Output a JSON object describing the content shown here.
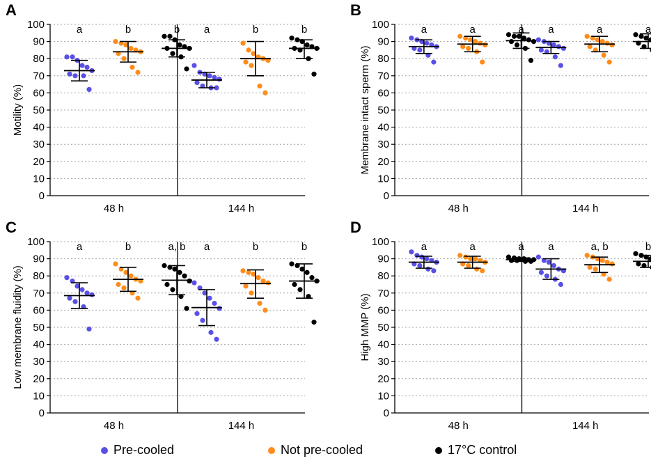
{
  "colors": {
    "pre_cooled": "#5a50e6",
    "not_pre_cooled": "#ff8c1a",
    "control": "#000000"
  },
  "legend": [
    {
      "key": "pre_cooled",
      "label": "Pre-cooled"
    },
    {
      "key": "not_pre_cooled",
      "label": "Not pre-cooled"
    },
    {
      "key": "control",
      "label": "17°C control"
    }
  ],
  "chart_data": [
    {
      "type": "scatter",
      "panel": "A",
      "ylabel": "Motility (%)",
      "ylim": [
        0,
        100
      ],
      "yticks": [
        0,
        10,
        20,
        30,
        40,
        50,
        60,
        70,
        80,
        90,
        100
      ],
      "grid": "dotted horizontal",
      "categories": [
        "48 h",
        "144 h"
      ],
      "groups": [
        {
          "series": "pre_cooled",
          "category": "48 h",
          "mean": 73,
          "sd_low": 67,
          "sd_high": 79,
          "points": [
            81,
            81,
            79,
            76,
            75,
            73,
            71,
            70,
            70,
            62
          ],
          "sig": "a"
        },
        {
          "series": "not_pre_cooled",
          "category": "48 h",
          "mean": 84,
          "sd_low": 78,
          "sd_high": 90,
          "points": [
            90,
            89,
            88,
            86,
            85,
            84,
            83,
            80,
            75,
            72
          ],
          "sig": "b"
        },
        {
          "series": "control",
          "category": "48 h",
          "mean": 86,
          "sd_low": 81,
          "sd_high": 91,
          "points": [
            93,
            93,
            91,
            88,
            87,
            86,
            86,
            83,
            81,
            74
          ],
          "sig": "b"
        },
        {
          "series": "pre_cooled",
          "category": "144 h",
          "mean": 67.5,
          "sd_low": 63,
          "sd_high": 72,
          "points": [
            76,
            72,
            71,
            70,
            69,
            68,
            66,
            64,
            63,
            63
          ],
          "sig": "a"
        },
        {
          "series": "not_pre_cooled",
          "category": "144 h",
          "mean": 80,
          "sd_low": 70,
          "sd_high": 90,
          "points": [
            89,
            85,
            83,
            81,
            80,
            79,
            78,
            76,
            64,
            60
          ],
          "sig": "b"
        },
        {
          "series": "control",
          "category": "144 h",
          "mean": 86,
          "sd_low": 80,
          "sd_high": 91,
          "points": [
            92,
            91,
            90,
            88,
            87,
            86,
            86,
            85,
            80,
            71
          ],
          "sig": "b"
        }
      ]
    },
    {
      "type": "scatter",
      "panel": "B",
      "ylabel": "Membrane intact sperm (%)",
      "ylim": [
        0,
        100
      ],
      "yticks": [
        0,
        10,
        20,
        30,
        40,
        50,
        60,
        70,
        80,
        90,
        100
      ],
      "grid": "dotted horizontal",
      "categories": [
        "48 h",
        "144 h"
      ],
      "groups": [
        {
          "series": "pre_cooled",
          "category": "48 h",
          "mean": 87,
          "sd_low": 83,
          "sd_high": 91,
          "points": [
            92,
            91,
            90,
            89,
            88,
            87,
            86,
            85,
            82,
            78
          ],
          "sig": "a"
        },
        {
          "series": "not_pre_cooled",
          "category": "48 h",
          "mean": 88.5,
          "sd_low": 84,
          "sd_high": 93,
          "points": [
            93,
            92,
            91,
            90,
            89,
            88,
            87,
            86,
            84,
            78
          ],
          "sig": "a"
        },
        {
          "series": "control",
          "category": "48 h",
          "mean": 90.5,
          "sd_low": 86,
          "sd_high": 95,
          "points": [
            94,
            93,
            93,
            92,
            91,
            90,
            90,
            88,
            86,
            79
          ],
          "sig": "a"
        },
        {
          "series": "pre_cooled",
          "category": "144 h",
          "mean": 86.5,
          "sd_low": 83,
          "sd_high": 90,
          "points": [
            91,
            90,
            89,
            88,
            87,
            86,
            85,
            84,
            81,
            76
          ],
          "sig": "a"
        },
        {
          "series": "not_pre_cooled",
          "category": "144 h",
          "mean": 88.5,
          "sd_low": 84,
          "sd_high": 93,
          "points": [
            93,
            92,
            91,
            90,
            89,
            88,
            87,
            85,
            82,
            78
          ],
          "sig": "a"
        },
        {
          "series": "control",
          "category": "144 h",
          "mean": 90,
          "sd_low": 86,
          "sd_high": 94.5,
          "points": [
            94,
            93,
            92,
            91,
            91,
            90,
            89,
            87,
            85,
            79
          ],
          "sig": "a"
        }
      ]
    },
    {
      "type": "scatter",
      "panel": "C",
      "ylabel": "Low membrane fluidity (%)",
      "ylim": [
        0,
        100
      ],
      "yticks": [
        0,
        10,
        20,
        30,
        40,
        50,
        60,
        70,
        80,
        90,
        100
      ],
      "grid": "dotted horizontal",
      "categories": [
        "48 h",
        "144 h"
      ],
      "groups": [
        {
          "series": "pre_cooled",
          "category": "48 h",
          "mean": 68.5,
          "sd_low": 61,
          "sd_high": 76,
          "points": [
            79,
            77,
            74,
            72,
            70,
            69,
            67,
            65,
            62,
            49
          ],
          "sig": "a"
        },
        {
          "series": "not_pre_cooled",
          "category": "48 h",
          "mean": 78,
          "sd_low": 71,
          "sd_high": 85,
          "points": [
            87,
            84,
            82,
            80,
            78,
            77,
            75,
            73,
            70,
            67
          ],
          "sig": "b"
        },
        {
          "series": "control",
          "category": "48 h",
          "mean": 77.5,
          "sd_low": 69,
          "sd_high": 86,
          "points": [
            86,
            85,
            84,
            82,
            80,
            77,
            75,
            72,
            68,
            61
          ],
          "sig": "a, b"
        },
        {
          "series": "pre_cooled",
          "category": "144 h",
          "mean": 61.5,
          "sd_low": 51,
          "sd_high": 72,
          "points": [
            76,
            73,
            70,
            67,
            64,
            61,
            58,
            54,
            47,
            43
          ],
          "sig": "a"
        },
        {
          "series": "not_pre_cooled",
          "category": "144 h",
          "mean": 75.5,
          "sd_low": 67,
          "sd_high": 83.5,
          "points": [
            83,
            82,
            81,
            79,
            77,
            76,
            74,
            70,
            64,
            60
          ],
          "sig": "b"
        },
        {
          "series": "control",
          "category": "144 h",
          "mean": 77,
          "sd_low": 67,
          "sd_high": 87,
          "points": [
            87,
            86,
            84,
            82,
            79,
            77,
            75,
            72,
            68,
            53
          ],
          "sig": "b"
        }
      ]
    },
    {
      "type": "scatter",
      "panel": "D",
      "ylabel": "High MMP (%)",
      "ylim": [
        0,
        100
      ],
      "yticks": [
        0,
        10,
        20,
        30,
        40,
        50,
        60,
        70,
        80,
        90,
        100
      ],
      "grid": "dotted horizontal",
      "categories": [
        "48 h",
        "144 h"
      ],
      "groups": [
        {
          "series": "pre_cooled",
          "category": "48 h",
          "mean": 88,
          "sd_low": 84.5,
          "sd_high": 91.5,
          "points": [
            94,
            92,
            91,
            90,
            89,
            88,
            87,
            86,
            84,
            83
          ],
          "sig": "a"
        },
        {
          "series": "not_pre_cooled",
          "category": "48 h",
          "mean": 88,
          "sd_low": 84.5,
          "sd_high": 91.5,
          "points": [
            92,
            91,
            90,
            90,
            89,
            88,
            87,
            86,
            84,
            83
          ],
          "sig": "a"
        },
        {
          "series": "control",
          "category": "48 h",
          "mean": 89.5,
          "sd_low": 88.5,
          "sd_high": 90.5,
          "points": [
            91,
            90.5,
            90,
            90,
            89.5,
            89.5,
            89,
            89,
            88.5,
            88.5
          ],
          "sig": "a"
        },
        {
          "series": "pre_cooled",
          "category": "144 h",
          "mean": 84,
          "sd_low": 78,
          "sd_high": 90,
          "points": [
            91,
            89,
            88,
            86,
            84,
            83,
            82,
            80,
            78,
            75
          ],
          "sig": "a"
        },
        {
          "series": "not_pre_cooled",
          "category": "144 h",
          "mean": 86.5,
          "sd_low": 82,
          "sd_high": 91,
          "points": [
            92,
            91,
            90,
            89,
            88,
            87,
            85,
            84,
            81,
            78
          ],
          "sig": "a, b"
        },
        {
          "series": "control",
          "category": "144 h",
          "mean": 88.5,
          "sd_low": 85,
          "sd_high": 92,
          "points": [
            93,
            92,
            91,
            90,
            89,
            88,
            87,
            86,
            85,
            82
          ],
          "sig": "b"
        }
      ]
    }
  ]
}
